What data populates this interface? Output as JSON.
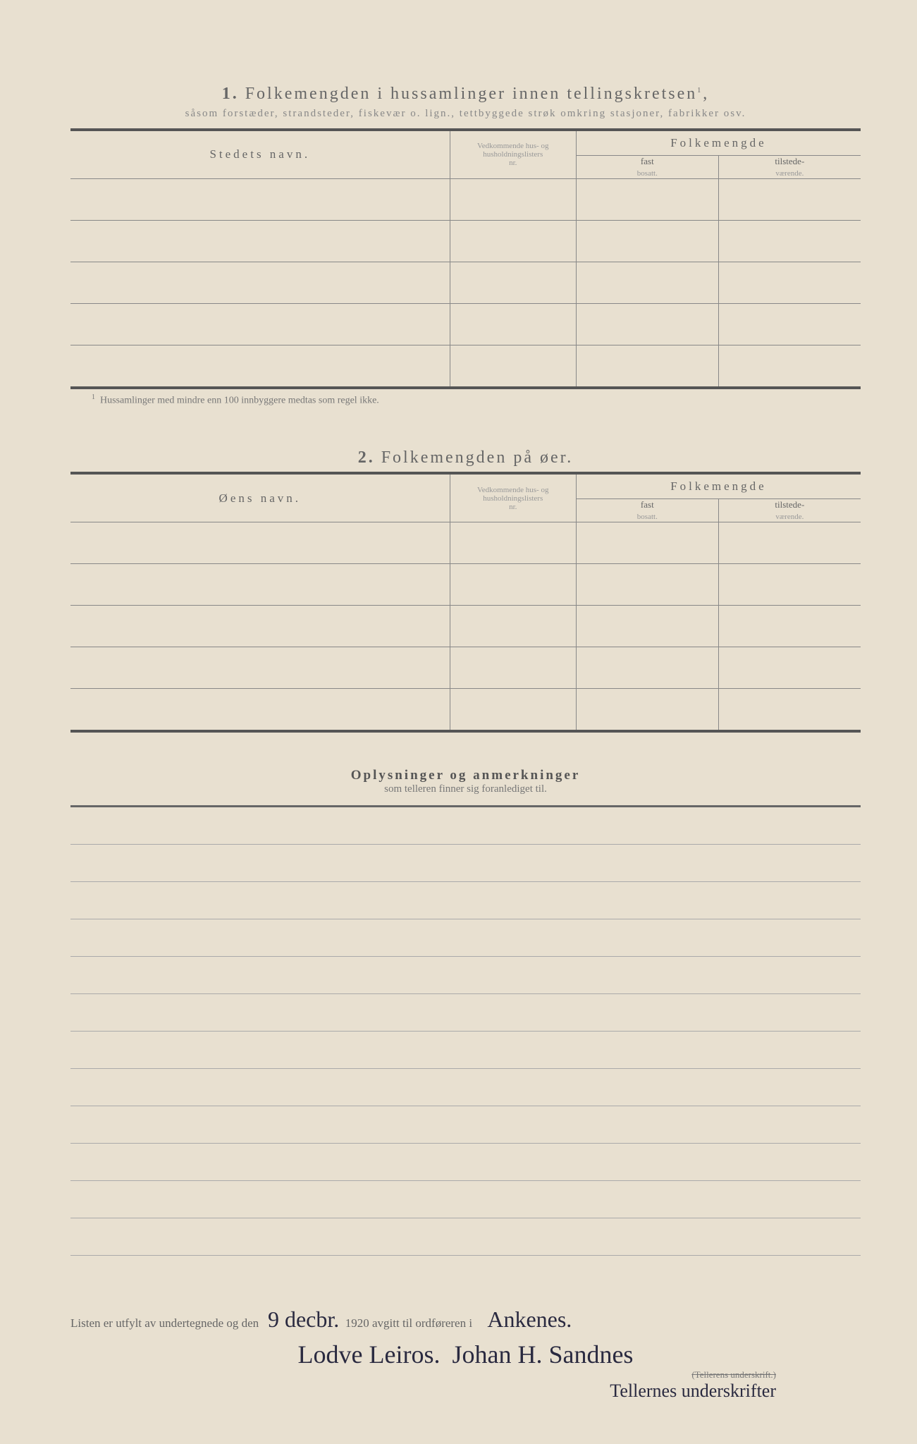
{
  "section1": {
    "number": "1.",
    "title": "Folkemengden i hussamlinger innen tellingskretsen",
    "title_sup": "1",
    "subtitle": "såsom forstæder, strandsteder, fiskevær o. lign., tettbyggede strøk omkring stasjoner, fabrikker osv.",
    "col_name": "Stedets navn.",
    "col_nr_line1": "Vedkommende hus- og",
    "col_nr_line2": "husholdningslisters",
    "col_nr_line3": "nr.",
    "col_folk": "Folkemengde",
    "col_fast": "fast",
    "col_fast_sub": "bosatt.",
    "col_til": "tilstede-",
    "col_til_sub": "værende.",
    "footnote_num": "1",
    "footnote": "Hussamlinger med mindre enn 100 innbyggere medtas som regel ikke.",
    "row_count": 5
  },
  "section2": {
    "number": "2.",
    "title": "Folkemengden på øer.",
    "col_name": "Øens navn.",
    "row_count": 5
  },
  "remarks": {
    "title": "Oplysninger og anmerkninger",
    "subtitle": "som telleren finner sig foranlediget til.",
    "line_count": 12
  },
  "signature": {
    "prefix": "Listen er utfylt av undertegnede og den",
    "date_hand": "9 decbr.",
    "year": "1920",
    "mid": "avgitt til ordføreren i",
    "place_hand": "Ankenes.",
    "sign_left": "Lodve Leiros.",
    "sign_right": "Johan H. Sandnes",
    "caption_strike": "(Tellerens underskrift.)",
    "caption_hand": "Tellernes underskrifter"
  },
  "styling": {
    "page_bg": "#e8e0d0",
    "border_color": "#888",
    "thick_border": "#555",
    "text_muted": "#666",
    "text_light": "#888",
    "handwriting_color": "#2a2a40"
  }
}
